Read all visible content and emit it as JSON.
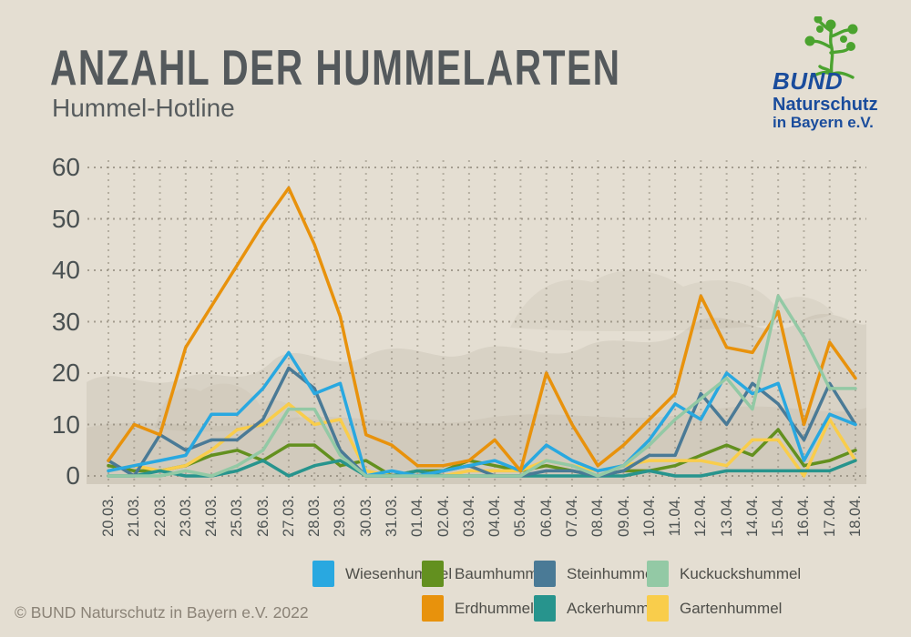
{
  "header": {
    "title": "ANZAHL DER HUMMELARTEN",
    "subtitle": "Hummel-Hotline"
  },
  "logo": {
    "line1": "BUND",
    "line2": "Naturschutz",
    "line3": "in Bayern e.V.",
    "text_color": "#1a4c9c",
    "tree_color": "#4ba32f"
  },
  "footer": {
    "copyright": "© BUND Naturschutz in Bayern e.V. 2022"
  },
  "chart_data": {
    "type": "line",
    "title": "Anzahl der Hummelarten",
    "subtitle": "Hummel-Hotline",
    "xlabel": "",
    "ylabel": "",
    "ylim": [
      0,
      60
    ],
    "yticks": [
      0,
      10,
      20,
      30,
      40,
      50,
      60
    ],
    "grid": "dotted horizontal and vertical",
    "legend_position": "bottom, two rows",
    "categories": [
      "20.03.",
      "21.03.",
      "22.03.",
      "23.03.",
      "24.03.",
      "25.03.",
      "26.03.",
      "27.03.",
      "28.03.",
      "29.03.",
      "30.03.",
      "31.03.",
      "01.04.",
      "02.04.",
      "03.04.",
      "04.04.",
      "05.04.",
      "06.04.",
      "07.04.",
      "08.04.",
      "09.04.",
      "10.04.",
      "11.04.",
      "12.04.",
      "13.04.",
      "14.04.",
      "15.04.",
      "16.04.",
      "17.04.",
      "18.04."
    ],
    "series": [
      {
        "name": "Wiesenhummel",
        "color": "#29a8e0",
        "values": [
          1,
          2,
          3,
          4,
          12,
          12,
          17,
          24,
          16,
          18,
          0,
          1,
          0,
          1,
          2,
          3,
          1,
          6,
          3,
          1,
          2,
          7,
          14,
          11,
          20,
          16,
          18,
          3,
          12,
          10
        ]
      },
      {
        "name": "Baumhummel",
        "color": "#63901f",
        "values": [
          2,
          1,
          1,
          2,
          4,
          5,
          3,
          6,
          6,
          2,
          3,
          0,
          1,
          1,
          3,
          2,
          1,
          2,
          1,
          0,
          1,
          1,
          2,
          4,
          6,
          4,
          9,
          2,
          3,
          5
        ]
      },
      {
        "name": "Steinhummel",
        "color": "#4a7a96",
        "values": [
          3,
          0,
          8,
          5,
          7,
          7,
          11,
          21,
          17,
          5,
          0,
          0,
          0,
          1,
          2,
          0,
          0,
          1,
          1,
          0,
          1,
          4,
          4,
          16,
          10,
          18,
          14,
          7,
          18,
          10
        ]
      },
      {
        "name": "Kuckuckshummel",
        "color": "#93c9a5",
        "values": [
          0,
          0,
          0,
          1,
          0,
          2,
          5,
          13,
          13,
          4,
          0,
          0,
          0,
          0,
          0,
          0,
          0,
          3,
          2,
          0,
          2,
          6,
          11,
          15,
          19,
          13,
          35,
          27,
          17,
          17
        ]
      },
      {
        "name": "Erdhummel",
        "color": "#e8920c",
        "values": [
          3,
          10,
          8,
          25,
          33,
          41,
          49,
          56,
          45,
          31,
          8,
          6,
          2,
          2,
          3,
          7,
          1,
          20,
          10,
          2,
          6,
          11,
          16,
          35,
          25,
          24,
          32,
          10,
          26,
          19
        ]
      },
      {
        "name": "Ackerhummel",
        "color": "#27948d",
        "values": [
          0,
          0,
          1,
          0,
          0,
          1,
          3,
          0,
          2,
          3,
          0,
          0,
          1,
          0,
          0,
          0,
          0,
          0,
          0,
          0,
          0,
          1,
          0,
          0,
          1,
          1,
          1,
          1,
          1,
          3
        ]
      },
      {
        "name": "Gartenhummel",
        "color": "#f9cd4b",
        "values": [
          1,
          2,
          1,
          2,
          5,
          9,
          10,
          14,
          10,
          11,
          1,
          0,
          1,
          0,
          1,
          1,
          1,
          3,
          2,
          1,
          2,
          3,
          3,
          3,
          2,
          7,
          7,
          0,
          11,
          3
        ]
      }
    ]
  }
}
